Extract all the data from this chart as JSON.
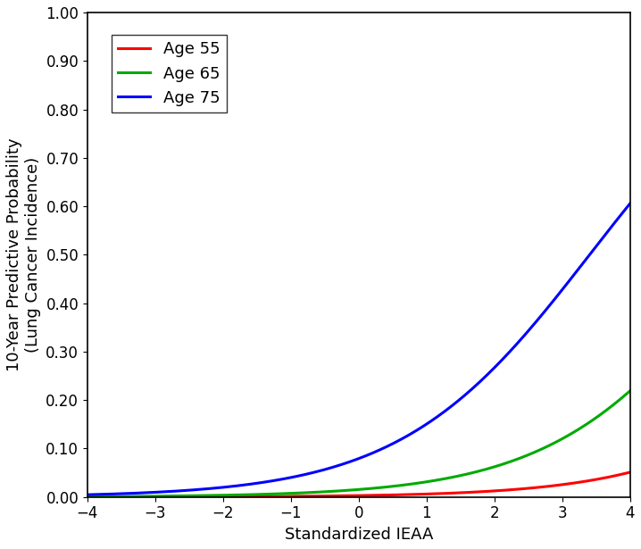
{
  "title": "",
  "xlabel": "Standardized IEAA",
  "ylabel": "10-Year Predictive Probability\n(Lung Cancer Incidence)",
  "xlim": [
    -4,
    4
  ],
  "ylim": [
    0.0,
    1.0
  ],
  "xticks": [
    -4,
    -3,
    -2,
    -1,
    0,
    1,
    2,
    3,
    4
  ],
  "yticks": [
    0.0,
    0.1,
    0.2,
    0.3,
    0.4,
    0.5,
    0.6,
    0.7,
    0.8,
    0.9,
    1.0
  ],
  "lines": [
    {
      "label": "Age 55",
      "color": "#FF0000",
      "intercept": -5.8,
      "slope": 0.72
    },
    {
      "label": "Age 65",
      "color": "#00AA00",
      "intercept": -4.15,
      "slope": 0.72
    },
    {
      "label": "Age 75",
      "color": "#0000FF",
      "intercept": -2.45,
      "slope": 0.72
    }
  ],
  "legend_loc": "upper left",
  "linewidth": 2.2,
  "figsize": [
    7.18,
    6.15
  ],
  "dpi": 100,
  "background_color": "#ffffff",
  "font_size": 13,
  "tick_font_size": 12,
  "label_fontsize": 13
}
